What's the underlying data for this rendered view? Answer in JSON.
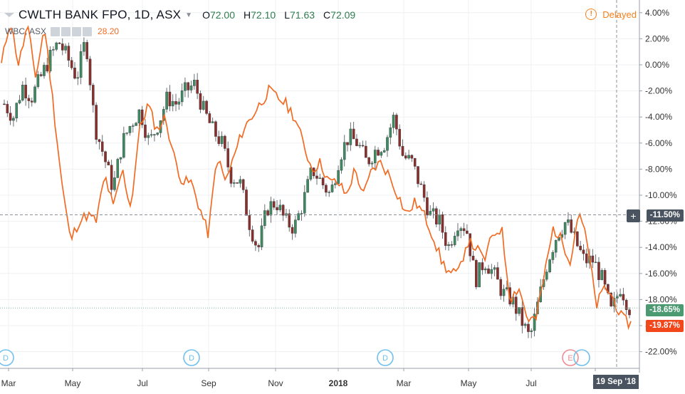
{
  "header": {
    "symbol_title": "CWLTH BANK FPO, 1D, ASX",
    "ohlc": [
      {
        "key": "O",
        "value": "72.00"
      },
      {
        "key": "H",
        "value": "72.10"
      },
      {
        "key": "L",
        "value": "71.63"
      },
      {
        "key": "C",
        "value": "72.09"
      }
    ]
  },
  "compare": {
    "label": "WBC, ASX",
    "value": "28.20"
  },
  "status": {
    "delayed_label": "Delayed",
    "delayed_icon": "clock-icon"
  },
  "badges": {
    "crosshair": "-11.50%",
    "cba_last": "-18.65%",
    "wbc_last": "-19.87%"
  },
  "crosshair_date": "19 Sep '18",
  "colors": {
    "up": "#3e8a61",
    "down": "#8b2f2c",
    "compare_line": "#f26b23",
    "cba_badge": "#4c9a72",
    "wbc_badge": "#f2461b",
    "crosshair_badge": "#4a5360",
    "event_dividend": "#6fc0ee",
    "event_earnings": "#ee8b94"
  },
  "chart_data": {
    "type": "line",
    "x_labels": [
      "Mar",
      "May",
      "Jul",
      "Sep",
      "Nov",
      "2018",
      "Mar",
      "May",
      "Jul",
      "S"
    ],
    "y_ticks": [
      "4.00%",
      "2.00%",
      "0.00%",
      "-2.00%",
      "-4.00%",
      "-6.00%",
      "-8.00%",
      "-10.00%",
      "-12.00%",
      "-14.00%",
      "-16.00%",
      "-18.00%",
      "-20.00%",
      "-22.00%"
    ],
    "ylim": [
      -23,
      4.8
    ],
    "series": [
      {
        "name": "CWLTH BANK FPO",
        "style": "candlestick",
        "values": [
          -3,
          -4,
          -1.6,
          -2.5,
          -1,
          0.5,
          1.8,
          0.5,
          -1,
          2,
          -4.7,
          -7,
          -9.5,
          -6,
          -4.5,
          -3.5,
          -6,
          -4.5,
          -2.5,
          -3,
          -2,
          -1.5,
          -3.5,
          -5,
          -6,
          -8.5,
          -9,
          -12,
          -14.2,
          -11,
          -10.5,
          -12,
          -12.5,
          -10.5,
          -8,
          -9,
          -10,
          -7,
          -5.5,
          -6,
          -7.5,
          -6.5,
          -6,
          -4,
          -7,
          -7.5,
          -9.5,
          -11.5,
          -12,
          -14,
          -12,
          -12.5,
          -16.5,
          -15,
          -16,
          -17.5,
          -18,
          -19.5,
          -21,
          -18,
          -15,
          -13,
          -12,
          -13.5,
          -15,
          -15,
          -16.5,
          -19,
          -17,
          -18.65
        ]
      },
      {
        "name": "WBC, ASX",
        "style": "line",
        "values": [
          0,
          3.5,
          0,
          3,
          -1,
          3,
          -3,
          -9,
          -13.5,
          -12,
          -11.5,
          -12,
          -8.5,
          -11,
          -8,
          -11,
          -5,
          -3,
          -5,
          -4,
          -7,
          -9,
          -9,
          -11,
          -13,
          -7,
          -9,
          -7,
          -5,
          -4,
          -3,
          -2,
          -2.5,
          -3,
          -4,
          -6,
          -8,
          -7.5,
          -9,
          -9,
          -10,
          -8,
          -10,
          -8,
          -7.5,
          -8.5,
          -10,
          -11.5,
          -10.5,
          -11.5,
          -13,
          -15,
          -16,
          -16,
          -13.5,
          -14,
          -15,
          -13,
          -12.5,
          -18,
          -17,
          -19.5,
          -19.5,
          -16,
          -12.5,
          -13.5,
          -15,
          -11,
          -14,
          -18.5,
          -17,
          -18,
          -19.5,
          -19.87
        ]
      }
    ],
    "crosshair": {
      "x_label": "19 Sep '18",
      "y_value": -11.5
    },
    "events": [
      {
        "label": "D",
        "type": "dividend"
      },
      {
        "label": "D",
        "type": "dividend"
      },
      {
        "label": "D",
        "type": "dividend"
      },
      {
        "label": "E",
        "type": "earnings"
      }
    ],
    "grid": true,
    "legend": "top-left"
  }
}
